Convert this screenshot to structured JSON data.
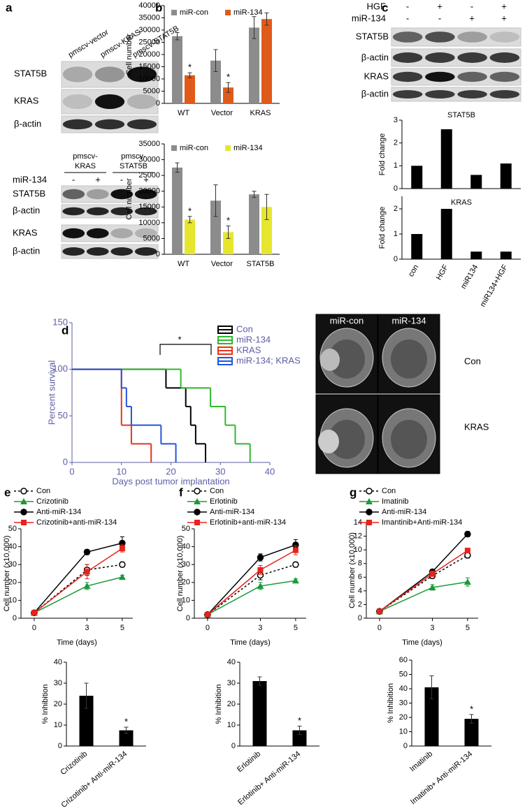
{
  "panel_labels": [
    "a",
    "b",
    "c",
    "d",
    "e",
    "f",
    "g"
  ],
  "blots": {
    "a_top": {
      "columns": [
        "pmscv-vector",
        "pmscv-KRAS",
        "pmscv-STAT5B"
      ],
      "rows": [
        "STAT5B",
        "KRAS",
        "β-actin"
      ]
    },
    "a_bottom": {
      "groups": [
        [
          "pmscv-",
          "KRAS"
        ],
        [
          "pmscv-",
          "STAT5B"
        ]
      ],
      "treatment": {
        "name": "miR-134",
        "signs": [
          "-",
          "+",
          "-",
          "+"
        ]
      },
      "rows": [
        "STAT5B",
        "β-actin",
        "KRAS",
        "β-actin"
      ]
    },
    "c": {
      "treatments": [
        {
          "name": "HGF",
          "signs": [
            "-",
            "+",
            "-",
            "+"
          ]
        },
        {
          "name": "miR-134",
          "signs": [
            "-",
            "-",
            "+",
            "+"
          ]
        }
      ],
      "rows": [
        "STAT5B",
        "β-actin",
        "KRAS",
        "β-actin"
      ]
    }
  },
  "mri": {
    "columns": [
      "miR-con",
      "miR-134"
    ],
    "rows": [
      "Con",
      "KRAS"
    ]
  },
  "chart_data": [
    {
      "type": "bar",
      "categories": [
        "WT",
        "Vector",
        "KRAS"
      ],
      "y_label": "Cell number",
      "ylim": [
        0,
        40000
      ],
      "yticks": [
        0,
        5000,
        10000,
        15000,
        20000,
        25000,
        30000,
        35000,
        40000
      ],
      "annotations": [
        "*",
        "*"
      ],
      "series": [
        {
          "name": "miR-con",
          "color": "#8c8c8c",
          "values": [
            27500,
            17500,
            31000
          ],
          "errors": [
            1500,
            4500,
            4500
          ]
        },
        {
          "name": "miR-134",
          "color": "#e05a1a",
          "values": [
            11500,
            6500,
            34500
          ],
          "errors": [
            1000,
            2000,
            2500
          ]
        }
      ]
    },
    {
      "type": "bar",
      "categories": [
        "WT",
        "Vector",
        "STAT5B"
      ],
      "y_label": "Cell number",
      "ylim": [
        0,
        35000
      ],
      "yticks": [
        0,
        5000,
        10000,
        15000,
        20000,
        25000,
        30000,
        35000
      ],
      "annotations": [
        "*",
        "*"
      ],
      "series": [
        {
          "name": "miR-con",
          "color": "#8c8c8c",
          "values": [
            27500,
            17000,
            19000
          ],
          "errors": [
            1500,
            5000,
            1000
          ]
        },
        {
          "name": "miR-134",
          "color": "#e6e62e",
          "values": [
            11000,
            7000,
            15000
          ],
          "errors": [
            1000,
            2000,
            4000
          ]
        }
      ]
    },
    {
      "type": "bar",
      "title": "STAT5B",
      "categories": [
        null,
        null,
        null,
        null
      ],
      "values": [
        1,
        2.6,
        0.6,
        1.1
      ],
      "color": "#000000",
      "y_label": "Fold change",
      "ylim": [
        0,
        3
      ],
      "yticks": [
        0,
        1,
        2,
        3
      ]
    },
    {
      "type": "bar",
      "title": "KRAS",
      "categories": [
        "con",
        "HGF",
        "miR134",
        "miR134+HGF"
      ],
      "values": [
        1,
        2,
        0.3,
        0.3
      ],
      "color": "#000000",
      "y_label": "Fold change",
      "ylim": [
        0,
        2.5
      ],
      "yticks": [
        0,
        1,
        2
      ]
    },
    {
      "type": "line",
      "step": true,
      "axis_color": "#5b5ea6",
      "x_label": "Days post tumor implantation",
      "y_label": "Percent survival",
      "xlim": [
        0,
        40
      ],
      "xticks": [
        0,
        10,
        20,
        30,
        40
      ],
      "ylim": [
        0,
        150
      ],
      "yticks": [
        0,
        50,
        100,
        150
      ],
      "annotations": [
        "*"
      ],
      "series": [
        {
          "name": "Con",
          "color": "#000000",
          "x": [
            0,
            19,
            23,
            24,
            25,
            27
          ],
          "values": [
            100,
            80,
            60,
            40,
            20,
            0
          ]
        },
        {
          "name": "miR-134",
          "color": "#2db82d",
          "x": [
            0,
            22,
            28,
            31,
            33,
            36
          ],
          "values": [
            100,
            80,
            60,
            40,
            20,
            0
          ]
        },
        {
          "name": "KRAS",
          "color": "#e8341c",
          "x": [
            0,
            10,
            12,
            16
          ],
          "values": [
            100,
            40,
            20,
            0
          ]
        },
        {
          "name": "miR-134; KRAS",
          "color": "#2255dd",
          "x": [
            0,
            10,
            11,
            12,
            18,
            21
          ],
          "values": [
            100,
            80,
            60,
            40,
            20,
            0
          ]
        }
      ]
    },
    {
      "type": "line",
      "x": [
        0,
        3,
        5
      ],
      "xlim": [
        -0.75,
        5.6
      ],
      "xticks": [
        0,
        3,
        5
      ],
      "ylim": [
        0,
        50
      ],
      "yticks": [
        0,
        10,
        20,
        30,
        40,
        50
      ],
      "x_label": "Time (days)",
      "y_label": "Cell number (x10,000)",
      "series": [
        {
          "name": "Con",
          "color": "#000000",
          "marker": "circle-open",
          "dashed": true,
          "values": [
            3,
            27,
            30
          ],
          "errors": [
            0.5,
            3,
            1.5
          ]
        },
        {
          "name": "Crizotinib",
          "color": "#1a9a3a",
          "marker": "triangle",
          "values": [
            3,
            18,
            23
          ],
          "errors": [
            0.5,
            2,
            1
          ]
        },
        {
          "name": "Anti-miR-134",
          "color": "#000000",
          "marker": "circle",
          "values": [
            3,
            37,
            42
          ],
          "errors": [
            0.5,
            1.5,
            3.5
          ]
        },
        {
          "name": "Crizotinib+anti-miR-134",
          "color": "#e8221c",
          "marker": "square",
          "values": [
            3,
            26,
            39
          ],
          "errors": [
            0.5,
            4,
            2
          ]
        }
      ]
    },
    {
      "type": "line",
      "x": [
        0,
        3,
        5
      ],
      "xlim": [
        -0.75,
        5.6
      ],
      "xticks": [
        0,
        3,
        5
      ],
      "ylim": [
        0,
        50
      ],
      "yticks": [
        0,
        10,
        20,
        30,
        40,
        50
      ],
      "x_label": "Time (days)",
      "y_label": "Cell number (x10,000)",
      "series": [
        {
          "name": "Con",
          "color": "#000000",
          "marker": "circle-open",
          "dashed": true,
          "values": [
            2,
            24,
            30
          ],
          "errors": [
            0.5,
            2.5,
            1.5
          ]
        },
        {
          "name": "Erlotinib",
          "color": "#1a9a3a",
          "marker": "triangle",
          "values": [
            2,
            18,
            21
          ],
          "errors": [
            0.5,
            2,
            1
          ]
        },
        {
          "name": "Anti-miR-134",
          "color": "#000000",
          "marker": "circle",
          "values": [
            2,
            34,
            41
          ],
          "errors": [
            0.5,
            2,
            3
          ]
        },
        {
          "name": "Erlotinib+anti-miR-134",
          "color": "#e8221c",
          "marker": "square",
          "values": [
            2,
            27,
            38
          ],
          "errors": [
            0.5,
            2.5,
            2.5
          ]
        }
      ]
    },
    {
      "type": "line",
      "x": [
        0,
        3,
        5
      ],
      "xlim": [
        -0.75,
        5.6
      ],
      "xticks": [
        0,
        3,
        5
      ],
      "ylim": [
        0,
        14
      ],
      "yticks": [
        0,
        2,
        4,
        6,
        8,
        10,
        12,
        14
      ],
      "x_label": "Time (days)",
      "y_label": "Cell number (x10,000)",
      "series": [
        {
          "name": "Con",
          "color": "#000000",
          "marker": "circle-open",
          "dashed": true,
          "values": [
            1,
            6.2,
            9.2
          ],
          "errors": [
            0.1,
            0.4,
            0.4
          ]
        },
        {
          "name": "Imatinib",
          "color": "#1a9a3a",
          "marker": "triangle",
          "values": [
            1,
            4.5,
            5.3
          ],
          "errors": [
            0.1,
            0.4,
            0.6
          ]
        },
        {
          "name": "Anti-miR-134",
          "color": "#000000",
          "marker": "circle",
          "values": [
            1,
            6.8,
            12.3
          ],
          "errors": [
            0.1,
            0.3,
            0.4
          ]
        },
        {
          "name": "Imantinib+Anti-miR-134",
          "color": "#e8221c",
          "marker": "square",
          "values": [
            1,
            6.5,
            9.9
          ],
          "errors": [
            0.1,
            0.4,
            0.3
          ]
        }
      ]
    },
    {
      "type": "bar",
      "categories": [
        "Crizotinib",
        "Crizotinib+ Anti-miR-134"
      ],
      "values": [
        24,
        7.5
      ],
      "errors": [
        6,
        1.5
      ],
      "color": "#000000",
      "y_label": "% Inhibition",
      "ylim": [
        0,
        40
      ],
      "yticks": [
        0,
        10,
        20,
        30,
        40
      ],
      "annotations": [
        "*"
      ]
    },
    {
      "type": "bar",
      "categories": [
        "Erlotinib",
        "Erlotinib+ Anti-miR-134"
      ],
      "values": [
        31,
        7.5
      ],
      "errors": [
        2,
        2
      ],
      "color": "#000000",
      "y_label": "% Inhibition",
      "ylim": [
        0,
        40
      ],
      "yticks": [
        0,
        10,
        20,
        30,
        40
      ],
      "annotations": [
        "*"
      ]
    },
    {
      "type": "bar",
      "categories": [
        "Imatinib",
        "Imatinib+ Anti-miR-134"
      ],
      "values": [
        41,
        19
      ],
      "errors": [
        8,
        3
      ],
      "color": "#000000",
      "y_label": "% Inhibition",
      "ylim": [
        0,
        60
      ],
      "yticks": [
        0,
        10,
        20,
        30,
        40,
        50,
        60
      ],
      "annotations": [
        "*"
      ]
    }
  ]
}
